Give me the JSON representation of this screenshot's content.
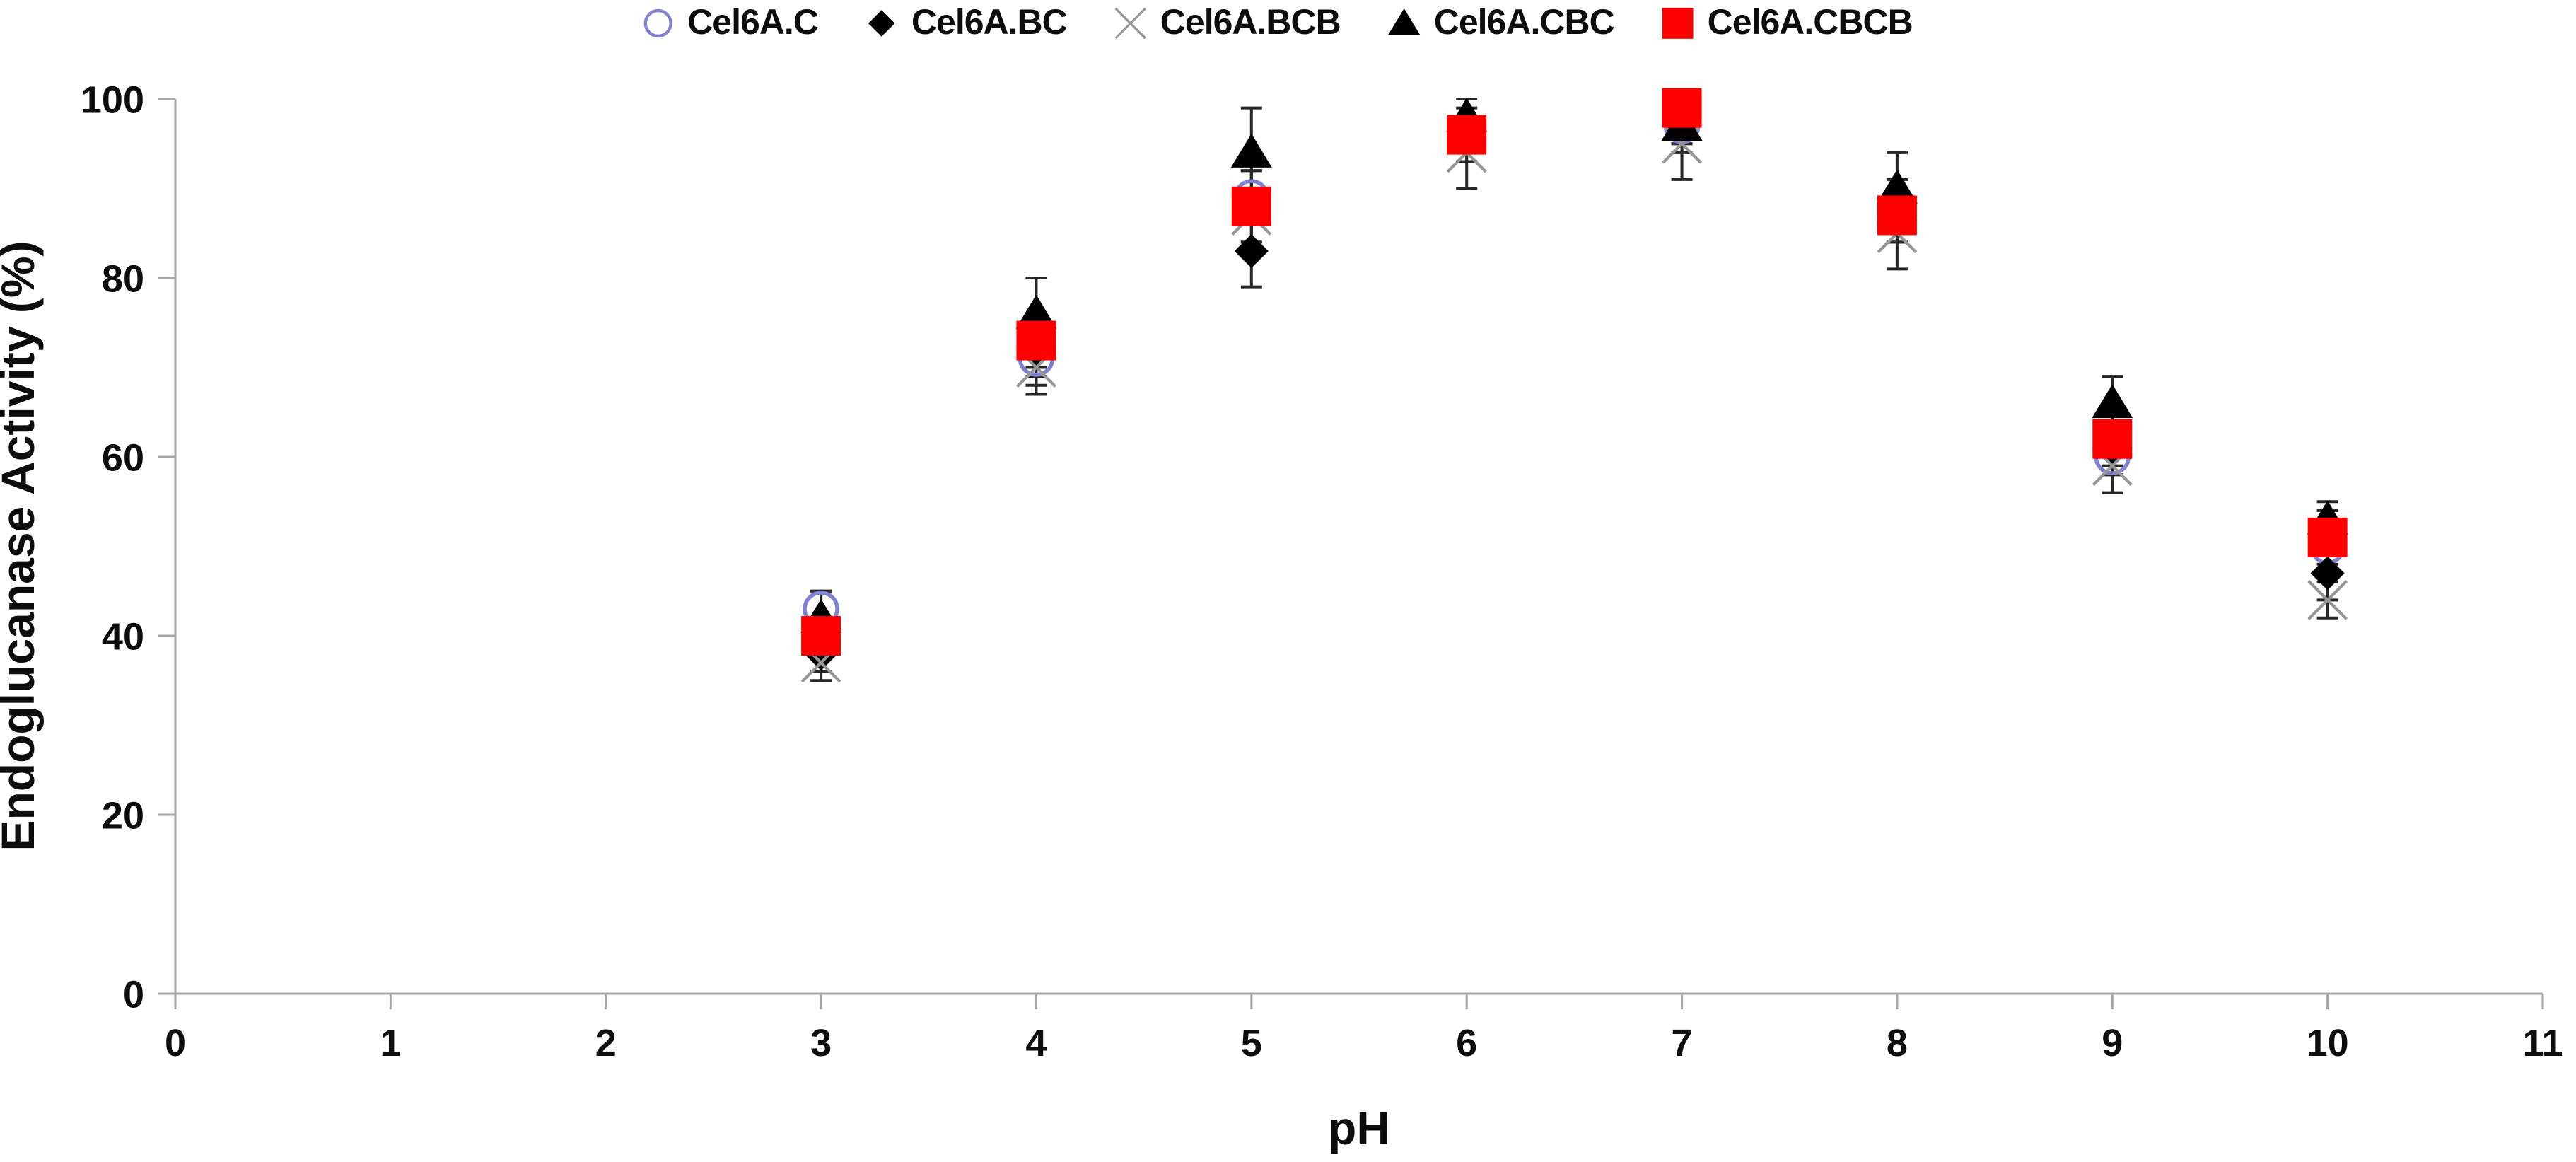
{
  "chart_data": {
    "type": "scatter",
    "title": "",
    "xlabel": "pH",
    "ylabel": "Endoglucanase Activity (%)",
    "x": [
      3,
      4,
      5,
      6,
      7,
      8,
      9,
      10
    ],
    "xlim": [
      0,
      11
    ],
    "ylim": [
      0,
      100
    ],
    "x_ticks": [
      0,
      1,
      2,
      3,
      4,
      5,
      6,
      7,
      8,
      9,
      10,
      11
    ],
    "y_ticks": [
      0,
      20,
      40,
      60,
      80,
      100
    ],
    "grid": false,
    "error_bars": true,
    "legend_position": "top-center",
    "axis_color": "#a6a6a6",
    "error_bar_color": "#262626",
    "series": [
      {
        "name": "Cel6A.C",
        "marker": "circle-open",
        "color": "#8181d2",
        "values": [
          43,
          71,
          89,
          96,
          97,
          87,
          60,
          50
        ],
        "errors": [
          2,
          3,
          3,
          2,
          2,
          3,
          2,
          3
        ]
      },
      {
        "name": "Cel6A.BC",
        "marker": "diamond",
        "color": "#000000",
        "values": [
          38,
          72,
          83,
          96,
          97,
          88,
          61,
          47
        ],
        "errors": [
          2,
          3,
          4,
          3,
          3,
          3,
          3,
          3
        ]
      },
      {
        "name": "Cel6A.BCB",
        "marker": "x",
        "color": "#969696",
        "values": [
          37,
          70,
          87,
          94,
          95,
          85,
          59,
          44
        ],
        "errors": [
          2,
          3,
          3,
          4,
          4,
          4,
          3,
          2
        ]
      },
      {
        "name": "Cel6A.CBC",
        "marker": "triangle",
        "color": "#000000",
        "values": [
          42,
          76,
          94,
          98,
          97,
          90,
          66,
          53
        ],
        "errors": [
          3,
          4,
          5,
          2,
          2,
          4,
          3,
          2
        ]
      },
      {
        "name": "Cel6A.CBCB",
        "marker": "square",
        "color": "#ff0000",
        "values": [
          40,
          73,
          88,
          96,
          99,
          87,
          62,
          51
        ],
        "errors": [
          2,
          3,
          4,
          2,
          2,
          3,
          3,
          3
        ]
      }
    ]
  }
}
